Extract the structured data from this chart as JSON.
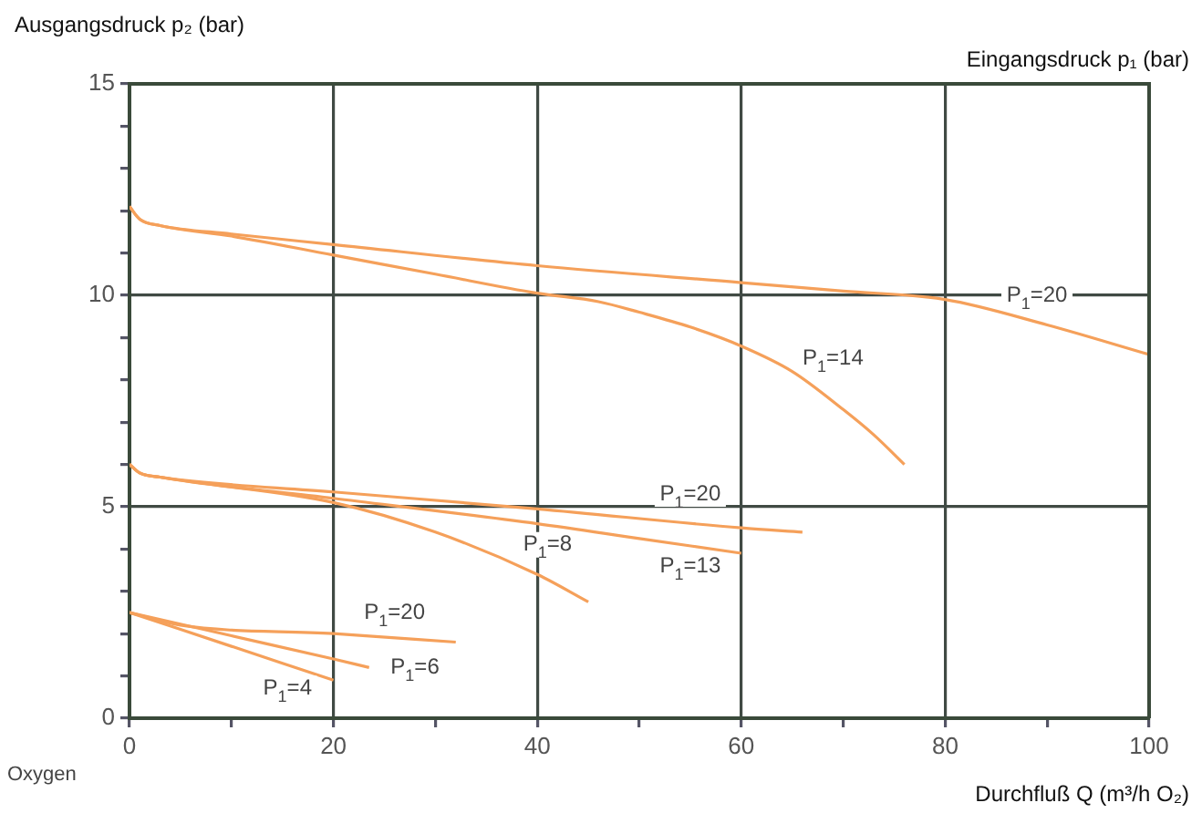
{
  "chart_data": {
    "type": "line",
    "ylabel": "Ausgangsdruck p₂ (bar)",
    "xlabel": "Durchfluß Q (m³/h O₂)",
    "xlim": [
      0,
      100
    ],
    "ylim": [
      0,
      15
    ],
    "xticks": [
      0,
      {
        "value": 10,
        "label": null
      },
      20,
      {
        "value": 30,
        "label": null
      },
      40,
      {
        "value": 50,
        "label": null
      },
      60,
      {
        "value": 70,
        "label": null
      },
      80,
      {
        "value": 90,
        "label": null
      },
      100
    ],
    "yticks": [
      0,
      {
        "value": 1,
        "label": null
      },
      {
        "value": 2,
        "label": null
      },
      {
        "value": 3,
        "label": null
      },
      {
        "value": 4,
        "label": null
      },
      5,
      {
        "value": 6,
        "label": null
      },
      {
        "value": 7,
        "label": null
      },
      {
        "value": 8,
        "label": null
      },
      {
        "value": 9,
        "label": null
      },
      10,
      {
        "value": 11,
        "label": null
      },
      {
        "value": 12,
        "label": null
      },
      {
        "value": 13,
        "label": null
      },
      {
        "value": 14,
        "label": null
      },
      15
    ],
    "grid": true,
    "legend": false,
    "marker": "none",
    "line_style": "solid",
    "series": [
      {
        "color": "#f5a05a",
        "x": [
          0,
          1,
          3,
          10,
          20,
          40,
          60,
          70,
          80,
          90,
          100
        ],
        "values": [
          12.1,
          11.8,
          11.65,
          11.45,
          11.2,
          10.7,
          10.3,
          10.1,
          9.9,
          9.3,
          8.6
        ]
      },
      {
        "color": "#f5a05a",
        "x": [
          0,
          1,
          3,
          10,
          20,
          30,
          40,
          46,
          50,
          55,
          60,
          65,
          70,
          73,
          76
        ],
        "values": [
          12.1,
          11.8,
          11.65,
          11.4,
          10.95,
          10.5,
          10.05,
          9.85,
          9.6,
          9.25,
          8.8,
          8.2,
          7.3,
          6.7,
          6.0
        ]
      },
      {
        "color": "#f5a05a",
        "x": [
          0,
          1,
          3,
          20,
          40,
          60,
          66
        ],
        "values": [
          6.0,
          5.8,
          5.7,
          5.35,
          4.95,
          4.5,
          4.4
        ]
      },
      {
        "color": "#f5a05a",
        "x": [
          0,
          1,
          3,
          20,
          40,
          50,
          60
        ],
        "values": [
          6.0,
          5.8,
          5.7,
          5.2,
          4.6,
          4.25,
          3.9
        ]
      },
      {
        "color": "#f5a05a",
        "x": [
          0,
          1,
          3,
          20,
          30,
          40,
          45
        ],
        "values": [
          6.0,
          5.8,
          5.7,
          5.1,
          4.4,
          3.4,
          2.75
        ]
      },
      {
        "color": "#f5a05a",
        "x": [
          0,
          5,
          20,
          32
        ],
        "values": [
          2.5,
          2.2,
          2.0,
          1.8
        ]
      },
      {
        "color": "#f5a05a",
        "x": [
          0,
          10,
          20,
          23.5
        ],
        "values": [
          2.5,
          1.95,
          1.4,
          1.2
        ]
      },
      {
        "color": "#f5a05a",
        "x": [
          0,
          10,
          20
        ],
        "values": [
          2.5,
          1.7,
          0.9
        ]
      }
    ],
    "annotations": [
      "Eingangsdruck p₁ (bar)",
      "Oxygen",
      {
        "text": "P$_{1}$=20",
        "x": 89,
        "y": 10
      },
      {
        "text": "P$_{1}$=14",
        "x": 69,
        "y": 8.5
      },
      {
        "text": "P$_{1}$=20",
        "x": 55,
        "y": 5.3
      },
      {
        "text": "P$_{1}$=8",
        "x": 41,
        "y": 4.1
      },
      {
        "text": "P$_{1}$=13",
        "x": 55,
        "y": 3.6
      },
      {
        "text": "P$_{1}$=20",
        "x": 26,
        "y": 2.5
      },
      {
        "text": "P$_{1}$=6",
        "x": 28,
        "y": 1.2
      },
      {
        "text": "P$_{1}$=4",
        "x": 15.5,
        "y": 0.7
      }
    ]
  }
}
